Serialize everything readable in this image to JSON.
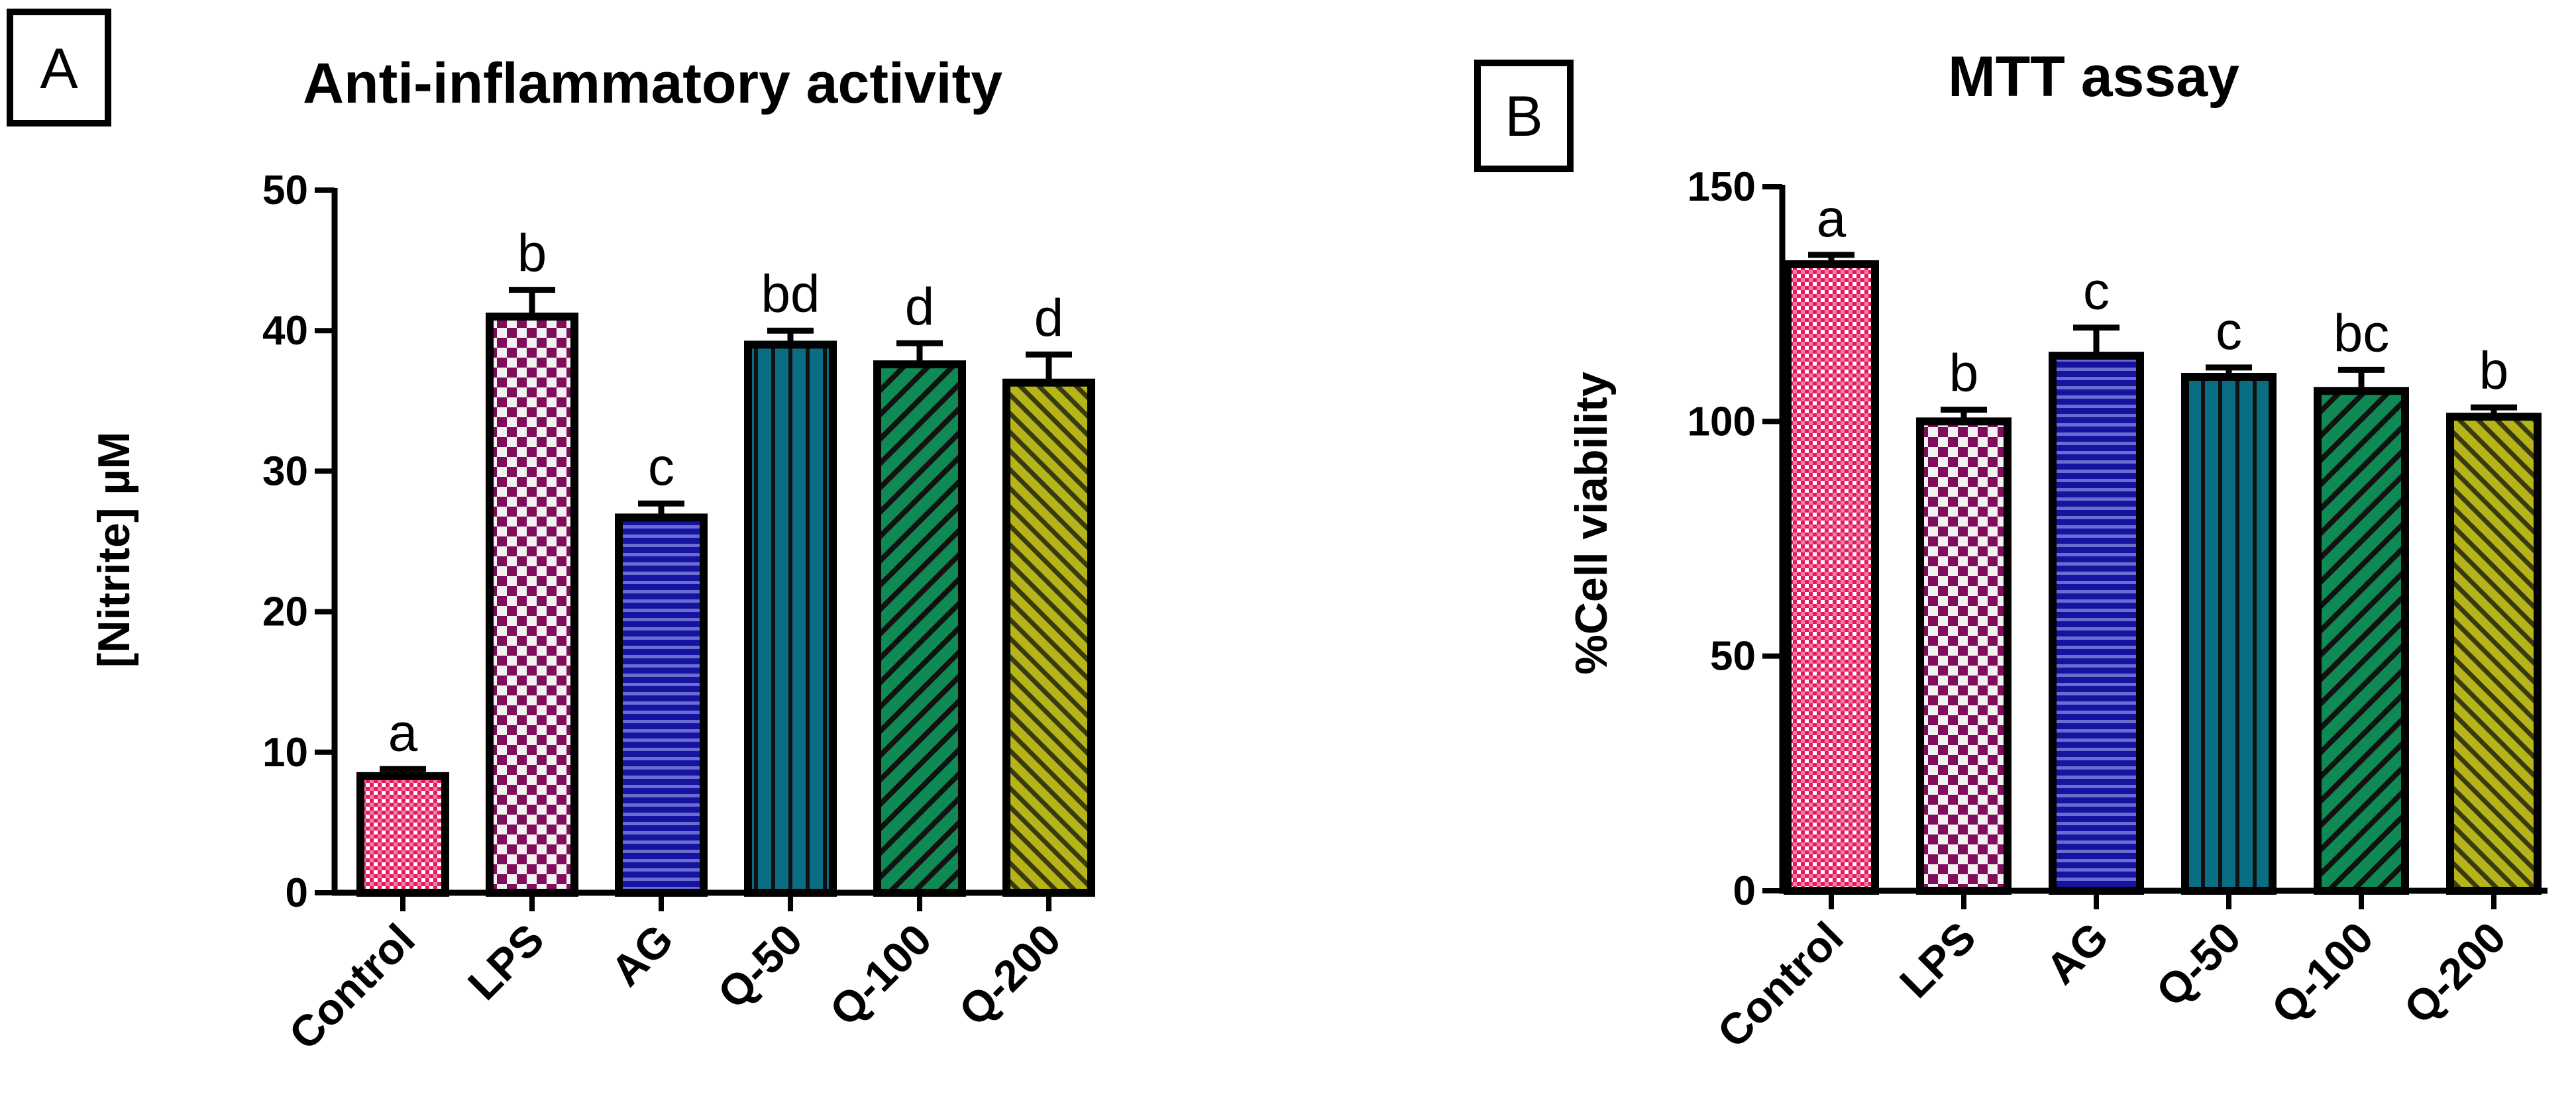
{
  "chart_data": [
    {
      "type": "bar",
      "panel_label": "A",
      "title": "Anti-inflammatory activity",
      "xlabel": "",
      "ylabel": "[Nitrite] µM",
      "ylim": [
        0,
        50
      ],
      "yticks": [
        0,
        10,
        20,
        30,
        40,
        50
      ],
      "categories": [
        "Control",
        "LPS",
        "AG",
        "Q-50",
        "Q-100",
        "Q-200"
      ],
      "values": [
        8.3,
        41.0,
        26.7,
        39.0,
        37.6,
        36.3
      ],
      "errors": [
        0.5,
        1.9,
        1.0,
        1.0,
        1.5,
        2.0
      ],
      "significance": [
        "a",
        "b",
        "c",
        "bd",
        "d",
        "d"
      ],
      "colors": [
        "#e6195f",
        "#800d5a",
        "#1414a0",
        "#0a6e82",
        "#108a55",
        "#b5b51a"
      ],
      "patterns": [
        "checker-fine",
        "checker",
        "horizontal",
        "vertical",
        "diagonal",
        "diagonal-fine"
      ]
    },
    {
      "type": "bar",
      "panel_label": "B",
      "title": "MTT assay",
      "xlabel": "",
      "ylabel": "%Cell viability",
      "ylim": [
        0,
        150
      ],
      "yticks": [
        0,
        50,
        100,
        150
      ],
      "categories": [
        "Control",
        "LPS",
        "AG",
        "Q-50",
        "Q-100",
        "Q-200"
      ],
      "values": [
        133.5,
        100.0,
        114.0,
        109.5,
        106.5,
        101.0
      ],
      "errors": [
        2.0,
        2.5,
        6.0,
        2.0,
        4.5,
        2.0
      ],
      "significance": [
        "a",
        "b",
        "c",
        "c",
        "bc",
        "b"
      ],
      "colors": [
        "#e6195f",
        "#800d5a",
        "#1414a0",
        "#0a6e82",
        "#108a55",
        "#b5b51a"
      ],
      "patterns": [
        "checker-fine",
        "checker",
        "horizontal",
        "vertical",
        "diagonal",
        "diagonal-fine"
      ]
    }
  ]
}
